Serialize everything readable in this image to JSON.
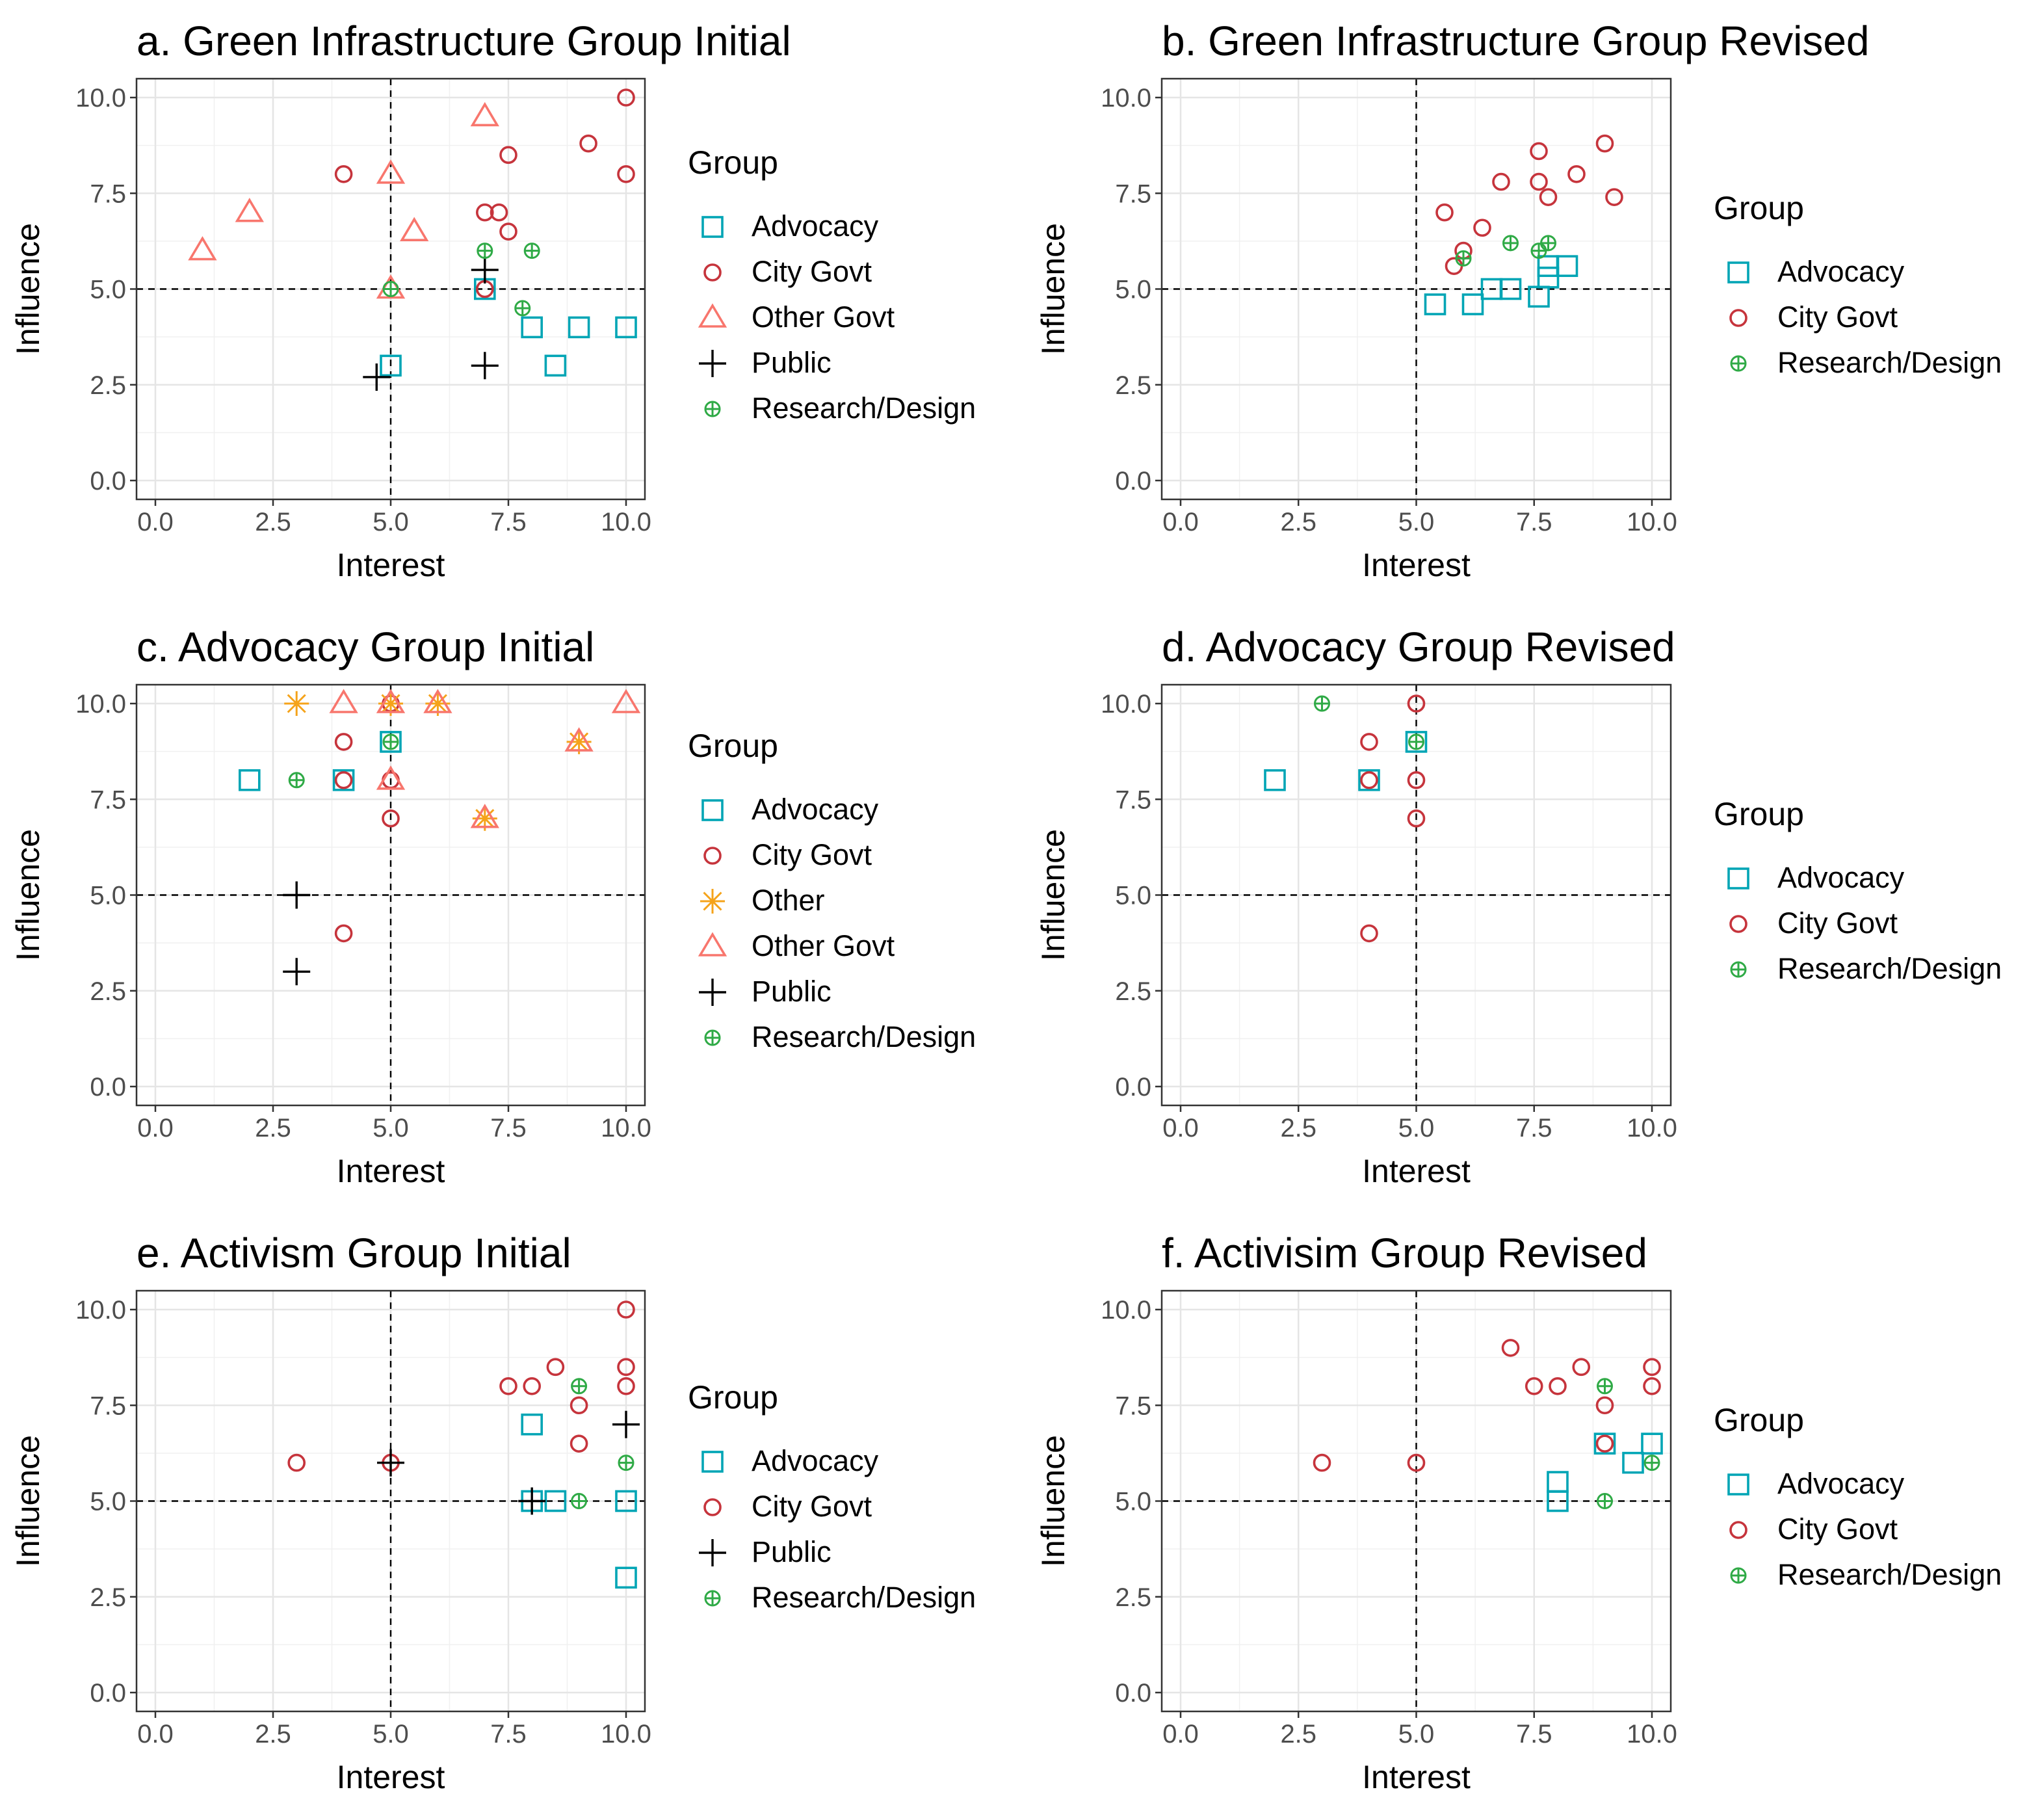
{
  "figure": {
    "colors": {
      "Advocacy": "#00A5B5",
      "City Govt": "#C6343C",
      "Other": "#F5A31A",
      "Other Govt": "#F8766D",
      "Public": "#000000",
      "Research/Design": "#2FAA46"
    }
  },
  "chart_data": [
    {
      "type": "scatter",
      "title": "a. Green Infrastructure Group Initial",
      "xlabel": "Interest",
      "ylabel": "Influence",
      "xlim": [
        0,
        10
      ],
      "ylim": [
        0,
        10
      ],
      "xticks": [
        "0.0",
        "2.5",
        "5.0",
        "7.5",
        "10.0"
      ],
      "yticks": [
        "0.0",
        "2.5",
        "5.0",
        "7.5",
        "10.0"
      ],
      "legend_title": "Group",
      "legend": [
        "Advocacy",
        "City Govt",
        "Other Govt",
        "Public",
        "Research/Design"
      ],
      "series": [
        {
          "name": "Advocacy",
          "marker": "square",
          "points": [
            [
              5,
              3
            ],
            [
              7,
              5
            ],
            [
              8,
              4
            ],
            [
              9,
              4
            ],
            [
              10,
              4
            ],
            [
              8.5,
              3
            ]
          ]
        },
        {
          "name": "City Govt",
          "marker": "circle",
          "points": [
            [
              4,
              8
            ],
            [
              7,
              7
            ],
            [
              7.3,
              7
            ],
            [
              7.5,
              8.5
            ],
            [
              7.5,
              6.5
            ],
            [
              7,
              5
            ],
            [
              9.2,
              8.8
            ],
            [
              10,
              10
            ],
            [
              10,
              8
            ]
          ]
        },
        {
          "name": "Other Govt",
          "marker": "triangle",
          "points": [
            [
              1,
              6
            ],
            [
              2,
              7
            ],
            [
              5,
              8
            ],
            [
              5.5,
              6.5
            ],
            [
              7,
              9.5
            ],
            [
              5,
              5
            ]
          ]
        },
        {
          "name": "Public",
          "marker": "plus",
          "points": [
            [
              4.7,
              2.7
            ],
            [
              7,
              3
            ],
            [
              7,
              5.5
            ]
          ]
        },
        {
          "name": "Research/Design",
          "marker": "circleplus",
          "points": [
            [
              5,
              5
            ],
            [
              7,
              6
            ],
            [
              8,
              6
            ],
            [
              7.8,
              4.5
            ]
          ]
        }
      ]
    },
    {
      "type": "scatter",
      "title": "b. Green Infrastructure Group Revised",
      "xlabel": "Interest",
      "ylabel": "Influence",
      "xlim": [
        0,
        10
      ],
      "ylim": [
        0,
        10
      ],
      "xticks": [
        "0.0",
        "2.5",
        "5.0",
        "7.5",
        "10.0"
      ],
      "yticks": [
        "0.0",
        "2.5",
        "5.0",
        "7.5",
        "10.0"
      ],
      "legend_title": "Group",
      "legend": [
        "Advocacy",
        "City Govt",
        "Research/Design"
      ],
      "series": [
        {
          "name": "Advocacy",
          "marker": "square",
          "points": [
            [
              5.4,
              4.6
            ],
            [
              6.2,
              4.6
            ],
            [
              6.6,
              5
            ],
            [
              7,
              5
            ],
            [
              7.6,
              4.8
            ],
            [
              7.8,
              5.3
            ],
            [
              7.8,
              5.6
            ],
            [
              8.2,
              5.6
            ]
          ]
        },
        {
          "name": "City Govt",
          "marker": "circle",
          "points": [
            [
              5.6,
              7
            ],
            [
              5.8,
              5.6
            ],
            [
              6,
              6
            ],
            [
              6.4,
              6.6
            ],
            [
              6.8,
              7.8
            ],
            [
              7.6,
              8.6
            ],
            [
              7.6,
              7.8
            ],
            [
              7.8,
              7.4
            ],
            [
              8.4,
              8
            ],
            [
              9,
              8.8
            ],
            [
              9.2,
              7.4
            ]
          ]
        },
        {
          "name": "Research/Design",
          "marker": "circleplus",
          "points": [
            [
              6,
              5.8
            ],
            [
              7,
              6.2
            ],
            [
              7.6,
              6
            ],
            [
              7.8,
              6.2
            ]
          ]
        }
      ]
    },
    {
      "type": "scatter",
      "title": "c. Advocacy Group Initial",
      "xlabel": "Interest",
      "ylabel": "Influence",
      "xlim": [
        0,
        10
      ],
      "ylim": [
        0,
        10
      ],
      "xticks": [
        "0.0",
        "2.5",
        "5.0",
        "7.5",
        "10.0"
      ],
      "yticks": [
        "0.0",
        "2.5",
        "5.0",
        "7.5",
        "10.0"
      ],
      "legend_title": "Group",
      "legend": [
        "Advocacy",
        "City Govt",
        "Other",
        "Other Govt",
        "Public",
        "Research/Design"
      ],
      "series": [
        {
          "name": "Advocacy",
          "marker": "square",
          "points": [
            [
              2,
              8
            ],
            [
              4,
              8
            ],
            [
              5,
              9
            ]
          ]
        },
        {
          "name": "City Govt",
          "marker": "circle",
          "points": [
            [
              4,
              9
            ],
            [
              4,
              8
            ],
            [
              5,
              10
            ],
            [
              5,
              8
            ],
            [
              5,
              7
            ],
            [
              4,
              4
            ]
          ]
        },
        {
          "name": "Other",
          "marker": "asterisk",
          "points": [
            [
              3,
              10
            ],
            [
              5,
              10
            ],
            [
              6,
              10
            ],
            [
              7,
              7
            ],
            [
              9,
              9
            ]
          ]
        },
        {
          "name": "Other Govt",
          "marker": "triangle",
          "points": [
            [
              4,
              10
            ],
            [
              5,
              10
            ],
            [
              6,
              10
            ],
            [
              5,
              8
            ],
            [
              7,
              7
            ],
            [
              9,
              9
            ],
            [
              10,
              10
            ]
          ]
        },
        {
          "name": "Public",
          "marker": "plus",
          "points": [
            [
              3,
              5
            ],
            [
              3,
              3
            ]
          ]
        },
        {
          "name": "Research/Design",
          "marker": "circleplus",
          "points": [
            [
              3,
              8
            ],
            [
              5,
              9
            ]
          ]
        }
      ]
    },
    {
      "type": "scatter",
      "title": "d. Advocacy Group Revised",
      "xlabel": "Interest",
      "ylabel": "Influence",
      "xlim": [
        0,
        10
      ],
      "ylim": [
        0,
        10
      ],
      "xticks": [
        "0.0",
        "2.5",
        "5.0",
        "7.5",
        "10.0"
      ],
      "yticks": [
        "0.0",
        "2.5",
        "5.0",
        "7.5",
        "10.0"
      ],
      "legend_title": "Group",
      "legend": [
        "Advocacy",
        "City Govt",
        "Research/Design"
      ],
      "series": [
        {
          "name": "Advocacy",
          "marker": "square",
          "points": [
            [
              2,
              8
            ],
            [
              4,
              8
            ],
            [
              5,
              9
            ]
          ]
        },
        {
          "name": "City Govt",
          "marker": "circle",
          "points": [
            [
              4,
              9
            ],
            [
              4,
              8
            ],
            [
              5,
              10
            ],
            [
              5,
              8
            ],
            [
              5,
              7
            ],
            [
              4,
              4
            ]
          ]
        },
        {
          "name": "Research/Design",
          "marker": "circleplus",
          "points": [
            [
              3,
              10
            ],
            [
              5,
              9
            ]
          ]
        }
      ]
    },
    {
      "type": "scatter",
      "title": "e. Activism Group Initial",
      "xlabel": "Interest",
      "ylabel": "Influence",
      "xlim": [
        0,
        10
      ],
      "ylim": [
        0,
        10
      ],
      "xticks": [
        "0.0",
        "2.5",
        "5.0",
        "7.5",
        "10.0"
      ],
      "yticks": [
        "0.0",
        "2.5",
        "5.0",
        "7.5",
        "10.0"
      ],
      "legend_title": "Group",
      "legend": [
        "Advocacy",
        "City Govt",
        "Public",
        "Research/Design"
      ],
      "series": [
        {
          "name": "Advocacy",
          "marker": "square",
          "points": [
            [
              8,
              7
            ],
            [
              8,
              5
            ],
            [
              8.5,
              5
            ],
            [
              10,
              5
            ],
            [
              10,
              3
            ]
          ]
        },
        {
          "name": "City Govt",
          "marker": "circle",
          "points": [
            [
              3,
              6
            ],
            [
              5,
              6
            ],
            [
              7.5,
              8
            ],
            [
              8,
              8
            ],
            [
              8.5,
              8.5
            ],
            [
              9,
              7.5
            ],
            [
              9,
              6.5
            ],
            [
              10,
              10
            ],
            [
              10,
              8.5
            ],
            [
              10,
              8
            ]
          ]
        },
        {
          "name": "Public",
          "marker": "plus",
          "points": [
            [
              5,
              6
            ],
            [
              10,
              7
            ],
            [
              8,
              5
            ]
          ]
        },
        {
          "name": "Research/Design",
          "marker": "circleplus",
          "points": [
            [
              9,
              8
            ],
            [
              9,
              5
            ],
            [
              10,
              6
            ]
          ]
        }
      ]
    },
    {
      "type": "scatter",
      "title": "f. Activisim Group Revised",
      "xlabel": "Interest",
      "ylabel": "Influence",
      "xlim": [
        0,
        10
      ],
      "ylim": [
        0,
        10
      ],
      "xticks": [
        "0.0",
        "2.5",
        "5.0",
        "7.5",
        "10.0"
      ],
      "yticks": [
        "0.0",
        "2.5",
        "5.0",
        "7.5",
        "10.0"
      ],
      "legend_title": "Group",
      "legend": [
        "Advocacy",
        "City Govt",
        "Research/Design"
      ],
      "series": [
        {
          "name": "Advocacy",
          "marker": "square",
          "points": [
            [
              8,
              5.5
            ],
            [
              8,
              5
            ],
            [
              9,
              6.5
            ],
            [
              9.6,
              6
            ],
            [
              10,
              6.5
            ]
          ]
        },
        {
          "name": "City Govt",
          "marker": "circle",
          "points": [
            [
              3,
              6
            ],
            [
              5,
              6
            ],
            [
              7,
              9
            ],
            [
              7.5,
              8
            ],
            [
              8,
              8
            ],
            [
              8.5,
              8.5
            ],
            [
              9,
              7.5
            ],
            [
              9,
              6.5
            ],
            [
              10,
              8.5
            ],
            [
              10,
              8
            ]
          ]
        },
        {
          "name": "Research/Design",
          "marker": "circleplus",
          "points": [
            [
              9,
              8
            ],
            [
              9,
              5
            ],
            [
              10,
              6
            ]
          ]
        }
      ]
    }
  ]
}
